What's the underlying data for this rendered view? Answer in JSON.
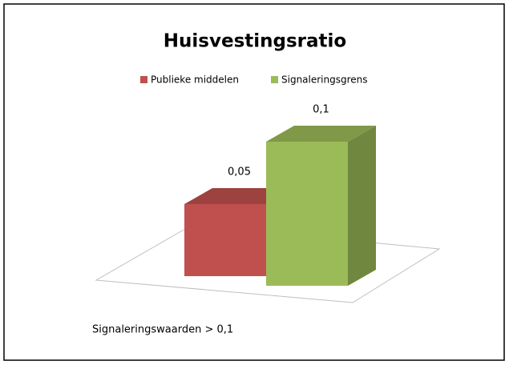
{
  "chart_data": {
    "type": "bar3d",
    "title": "Huisvestingsratio",
    "categories": [
      null
    ],
    "series": [
      {
        "name": "Publieke middelen",
        "color": "#c0504d",
        "values": [
          0.05
        ],
        "value_labels": [
          "0,05"
        ]
      },
      {
        "name": "Signaleringsgrens",
        "color": "#9bbb59",
        "values": [
          0.1
        ],
        "value_labels": [
          "0,1"
        ]
      }
    ],
    "annotation": "Signaleringswaarden > 0,1"
  }
}
